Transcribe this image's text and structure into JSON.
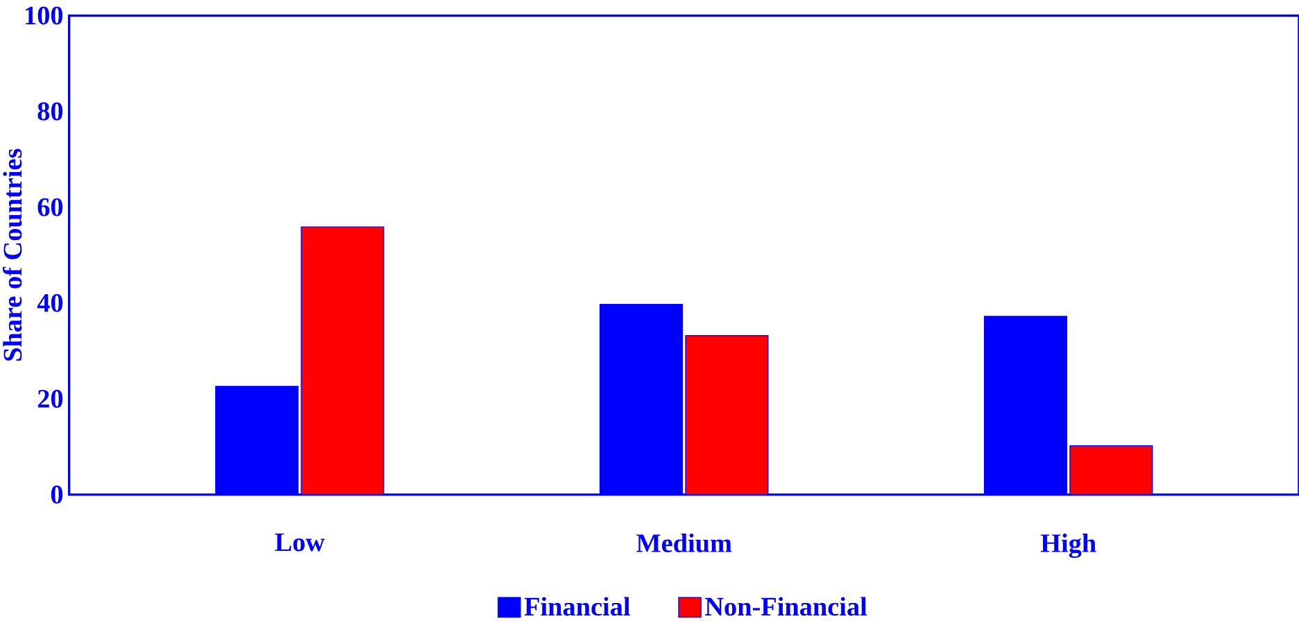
{
  "chart_data": {
    "type": "bar",
    "ylabel": "Share of Countries",
    "categories": [
      "Low",
      "Medium",
      "High"
    ],
    "series": [
      {
        "name": "Financial",
        "color": "#0000ff",
        "values": [
          22.6,
          39.7,
          37.2
        ]
      },
      {
        "name": "Non-Financial",
        "color": "#ff0000",
        "values": [
          55.9,
          33.2,
          10.2
        ]
      }
    ],
    "ylim": [
      0,
      100
    ],
    "yticks": [
      0,
      20,
      40,
      60,
      80,
      100
    ],
    "legend": "bottom"
  }
}
